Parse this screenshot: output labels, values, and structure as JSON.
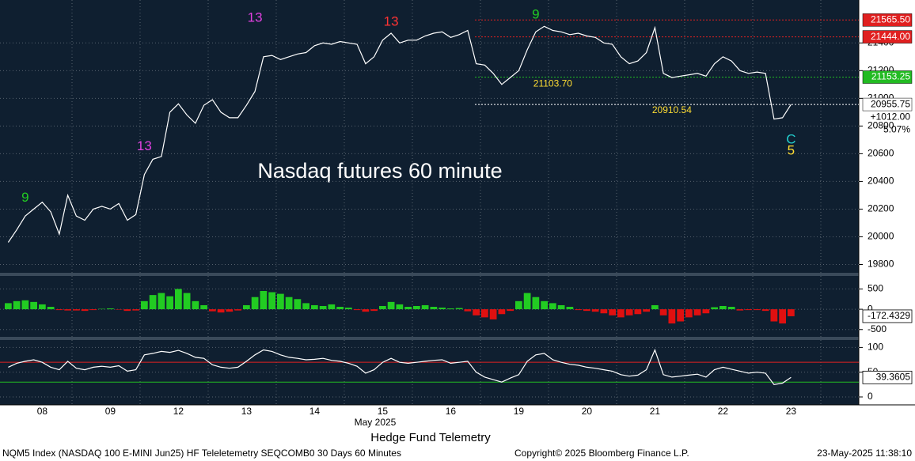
{
  "chart_data": [
    {
      "type": "line",
      "title": "Nasdaq futures 60 minute",
      "color": "#ffffff",
      "categories": [
        null,
        null,
        null,
        null,
        "08",
        null,
        null,
        null,
        null,
        null,
        null,
        null,
        "09",
        null,
        null,
        null,
        null,
        null,
        null,
        null,
        "12",
        null,
        null,
        null,
        null,
        null,
        null,
        null,
        "13",
        null,
        null,
        null,
        null,
        null,
        null,
        null,
        "14",
        null,
        null,
        null,
        null,
        null,
        null,
        null,
        "15",
        null,
        null,
        null,
        null,
        null,
        null,
        null,
        "16",
        null,
        null,
        null,
        null,
        null,
        null,
        null,
        "19",
        null,
        null,
        null,
        null,
        null,
        null,
        null,
        "20",
        null,
        null,
        null,
        null,
        null,
        null,
        null,
        "21",
        null,
        null,
        null,
        null,
        null,
        null,
        null,
        "22",
        null,
        null,
        null,
        null,
        null,
        null,
        null,
        "23",
        null,
        null,
        null
      ],
      "values": [
        19960,
        20050,
        20150,
        20200,
        20250,
        20180,
        20020,
        20300,
        20150,
        20120,
        20200,
        20220,
        20200,
        20240,
        20120,
        20160,
        20450,
        20560,
        20580,
        20900,
        20960,
        20880,
        20820,
        20950,
        20990,
        20900,
        20860,
        20860,
        20950,
        21050,
        21300,
        21310,
        21280,
        21300,
        21320,
        21330,
        21380,
        21400,
        21390,
        21410,
        21400,
        21390,
        21250,
        21300,
        21420,
        21470,
        21400,
        21420,
        21420,
        21450,
        21470,
        21480,
        21440,
        21460,
        21490,
        21250,
        21240,
        21180,
        21100,
        21150,
        21200,
        21350,
        21480,
        21520,
        21490,
        21480,
        21460,
        21470,
        21450,
        21440,
        21400,
        21390,
        21300,
        21250,
        21270,
        21330,
        21510,
        21180,
        21150,
        21160,
        21170,
        21180,
        21160,
        21250,
        21300,
        21270,
        21200,
        21180,
        21190,
        21180,
        20850,
        20860,
        20955.75,
        null,
        null,
        null
      ],
      "ylim": [
        19740,
        21710
      ],
      "yticks": [
        19800,
        20000,
        20200,
        20400,
        20600,
        20800,
        21000,
        21200,
        21400
      ],
      "grid": true,
      "x_label": "May 2025",
      "levels": [
        {
          "value": 21565.5,
          "label": "21565.50",
          "color": "#e02020"
        },
        {
          "value": 21444,
          "label": "21444.00",
          "color": "#e02020"
        },
        {
          "value": 21153.25,
          "label": "21153.25",
          "color": "#22bb22"
        },
        {
          "value": 20955.75,
          "label": "20955.75",
          "color": "#ffffff"
        }
      ],
      "change": "+1012.00",
      "change_pct": "5.07%",
      "annotations": [
        {
          "text": "13",
          "x": 16,
          "y": 20650,
          "color": "#e040e0"
        },
        {
          "text": "13",
          "x": 29,
          "y": 21580,
          "color": "#e040e0"
        },
        {
          "text": "13",
          "x": 45,
          "y": 21550,
          "color": "#ff3333"
        },
        {
          "text": "9",
          "x": 62,
          "y": 21600,
          "color": "#22cc22"
        },
        {
          "text": "9",
          "x": 2,
          "y": 20280,
          "color": "#22cc22"
        },
        {
          "text": "21103.70",
          "x": 64,
          "y": 21103.7,
          "color": "#ffdd33"
        },
        {
          "text": "20910.54",
          "x": 78,
          "y": 20910.54,
          "color": "#ffdd33"
        },
        {
          "text": "C",
          "x": 92,
          "y": 20700,
          "color": "#22cccc"
        },
        {
          "text": "5",
          "x": 92,
          "y": 20620,
          "color": "#ffdd33"
        }
      ]
    },
    {
      "type": "bar",
      "colors": [
        "#22cc22",
        "#e01010"
      ],
      "values": [
        150,
        200,
        220,
        180,
        120,
        60,
        -20,
        -30,
        -30,
        -40,
        -20,
        10,
        20,
        -10,
        -40,
        -30,
        200,
        350,
        400,
        320,
        500,
        400,
        200,
        100,
        -50,
        -80,
        -60,
        -30,
        100,
        300,
        450,
        420,
        380,
        300,
        250,
        150,
        100,
        80,
        120,
        60,
        40,
        -20,
        -60,
        -40,
        80,
        180,
        120,
        60,
        80,
        100,
        60,
        40,
        20,
        30,
        -50,
        -150,
        -200,
        -250,
        -120,
        -40,
        200,
        400,
        300,
        200,
        150,
        100,
        60,
        -20,
        -40,
        -60,
        -100,
        -150,
        -200,
        -150,
        -120,
        -60,
        100,
        -150,
        -350,
        -300,
        -200,
        -150,
        -100,
        50,
        80,
        60,
        -30,
        -20,
        -20,
        -40,
        -300,
        -350,
        -172.4329,
        null,
        null,
        null
      ],
      "ylim": [
        -680,
        820
      ],
      "yticks": [
        -500,
        0,
        500
      ],
      "last_value": -172.4329
    },
    {
      "type": "line",
      "color": "#ffffff",
      "levels": [
        {
          "value": 70,
          "color": "#e02020"
        },
        {
          "value": 30,
          "color": "#22bb22"
        }
      ],
      "values": [
        60,
        68,
        72,
        75,
        70,
        60,
        55,
        72,
        58,
        55,
        60,
        62,
        60,
        63,
        52,
        55,
        85,
        88,
        92,
        90,
        94,
        88,
        80,
        78,
        65,
        60,
        58,
        60,
        72,
        85,
        95,
        92,
        85,
        80,
        78,
        75,
        76,
        78,
        74,
        72,
        68,
        62,
        48,
        55,
        70,
        78,
        70,
        68,
        70,
        72,
        74,
        75,
        68,
        70,
        72,
        50,
        40,
        35,
        30,
        38,
        45,
        72,
        85,
        88,
        75,
        70,
        66,
        64,
        60,
        58,
        55,
        52,
        45,
        42,
        44,
        55,
        95,
        45,
        40,
        42,
        44,
        46,
        40,
        55,
        60,
        56,
        52,
        48,
        50,
        48,
        25,
        28,
        39.3605,
        null,
        null,
        null
      ],
      "ylim": [
        -16,
        115
      ],
      "yticks": [
        0,
        50,
        100
      ],
      "last_value": 39.3605
    }
  ],
  "footer": {
    "caption": "Hedge Fund Telemetry",
    "left": "NQM5 Index (NASDAQ 100 E-MINI Jun25) HF Teleletemetry SEQCOMB0 30 Days 60 Minutes",
    "center": "Copyright© 2025 Bloomberg Finance L.P.",
    "right": "23-May-2025 11:38:10"
  }
}
